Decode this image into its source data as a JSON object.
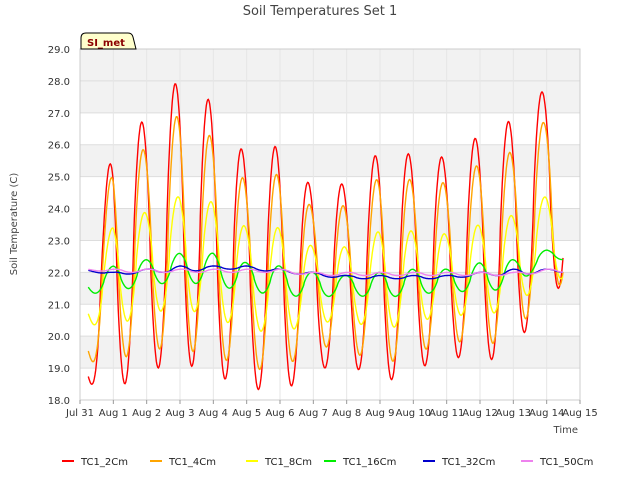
{
  "chart_data": {
    "type": "line",
    "title": "Soil Temperatures Set 1",
    "xlabel": "Time",
    "ylabel": "Soil Temperature (C)",
    "ylim": [
      18.0,
      29.0
    ],
    "xlim": [
      0,
      15
    ],
    "x_ticks": [
      "Jul 31",
      "Aug 1",
      "Aug 2",
      "Aug 3",
      "Aug 4",
      "Aug 5",
      "Aug 6",
      "Aug 7",
      "Aug 8",
      "Aug 9",
      "Aug 10",
      "Aug 11",
      "Aug 12",
      "Aug 13",
      "Aug 14",
      "Aug 15"
    ],
    "y_ticks": [
      "18.0",
      "19.0",
      "20.0",
      "21.0",
      "22.0",
      "23.0",
      "24.0",
      "25.0",
      "26.0",
      "27.0",
      "28.0",
      "29.0"
    ],
    "grid": true,
    "banded_background": true,
    "site_label": "SI_met",
    "legend_position": "bottom",
    "days": [
      "Jul 31",
      "Aug 1",
      "Aug 2",
      "Aug 3",
      "Aug 4",
      "Aug 5",
      "Aug 6",
      "Aug 7",
      "Aug 8",
      "Aug 9",
      "Aug 10",
      "Aug 11",
      "Aug 12",
      "Aug 13",
      "Aug 14"
    ],
    "series": [
      {
        "name": "TC1_2Cm",
        "color": "#ff0000",
        "daily_min": [
          18.6,
          18.3,
          18.9,
          19.2,
          18.8,
          18.4,
          18.2,
          18.9,
          19.2,
          18.5,
          18.9,
          19.4,
          19.2,
          19.4,
          21.5
        ],
        "daily_max": [
          19.6,
          26.2,
          26.8,
          28.1,
          27.3,
          25.6,
          26.0,
          24.6,
          24.8,
          25.8,
          25.7,
          25.6,
          26.3,
          26.8,
          27.8
        ]
      },
      {
        "name": "TC1_4Cm",
        "color": "#ffa500",
        "daily_min": [
          19.2,
          19.2,
          19.6,
          19.6,
          19.4,
          19.0,
          18.9,
          19.7,
          19.6,
          19.1,
          19.4,
          19.9,
          19.7,
          19.9,
          21.6
        ],
        "daily_max": [
          20.1,
          25.4,
          25.9,
          27.0,
          26.2,
          24.8,
          25.1,
          24.0,
          24.1,
          25.0,
          24.9,
          24.8,
          25.4,
          25.8,
          26.8
        ]
      },
      {
        "name": "TC1_8Cm",
        "color": "#ffff00",
        "daily_min": [
          20.4,
          20.3,
          20.7,
          20.9,
          20.6,
          20.2,
          20.1,
          20.4,
          20.5,
          20.2,
          20.4,
          20.7,
          20.6,
          20.9,
          21.8
        ],
        "daily_max": [
          21.1,
          23.5,
          23.9,
          24.4,
          24.2,
          23.4,
          23.4,
          22.8,
          22.8,
          23.3,
          23.3,
          23.2,
          23.5,
          23.8,
          24.4
        ]
      },
      {
        "name": "TC1_16Cm",
        "color": "#00ee00",
        "daily_min": [
          21.3,
          21.4,
          21.6,
          21.7,
          21.6,
          21.4,
          21.3,
          21.2,
          21.3,
          21.2,
          21.3,
          21.4,
          21.4,
          21.5,
          22.4
        ],
        "daily_max": [
          21.8,
          22.2,
          22.4,
          22.6,
          22.6,
          22.3,
          22.2,
          22.0,
          21.9,
          22.0,
          22.1,
          22.1,
          22.3,
          22.4,
          22.7
        ]
      },
      {
        "name": "TC1_32Cm",
        "color": "#0000cc",
        "daily_min": [
          22.1,
          21.9,
          22.0,
          22.0,
          22.1,
          22.1,
          22.0,
          21.9,
          21.8,
          21.8,
          21.8,
          21.8,
          21.9,
          21.9,
          22.0
        ],
        "daily_max": [
          22.1,
          22.0,
          22.1,
          22.2,
          22.2,
          22.2,
          22.1,
          22.0,
          21.9,
          21.9,
          21.9,
          21.9,
          22.0,
          22.1,
          22.1
        ]
      },
      {
        "name": "TC1_50Cm",
        "color": "#ee82ee",
        "daily_min": [
          22.1,
          22.0,
          22.0,
          22.0,
          22.0,
          22.0,
          22.0,
          21.9,
          21.9,
          21.9,
          21.9,
          21.9,
          21.9,
          21.9,
          22.0
        ],
        "daily_max": [
          22.1,
          22.1,
          22.1,
          22.1,
          22.1,
          22.1,
          22.1,
          22.0,
          22.0,
          22.0,
          22.0,
          22.0,
          22.0,
          22.0,
          22.1
        ]
      }
    ]
  }
}
